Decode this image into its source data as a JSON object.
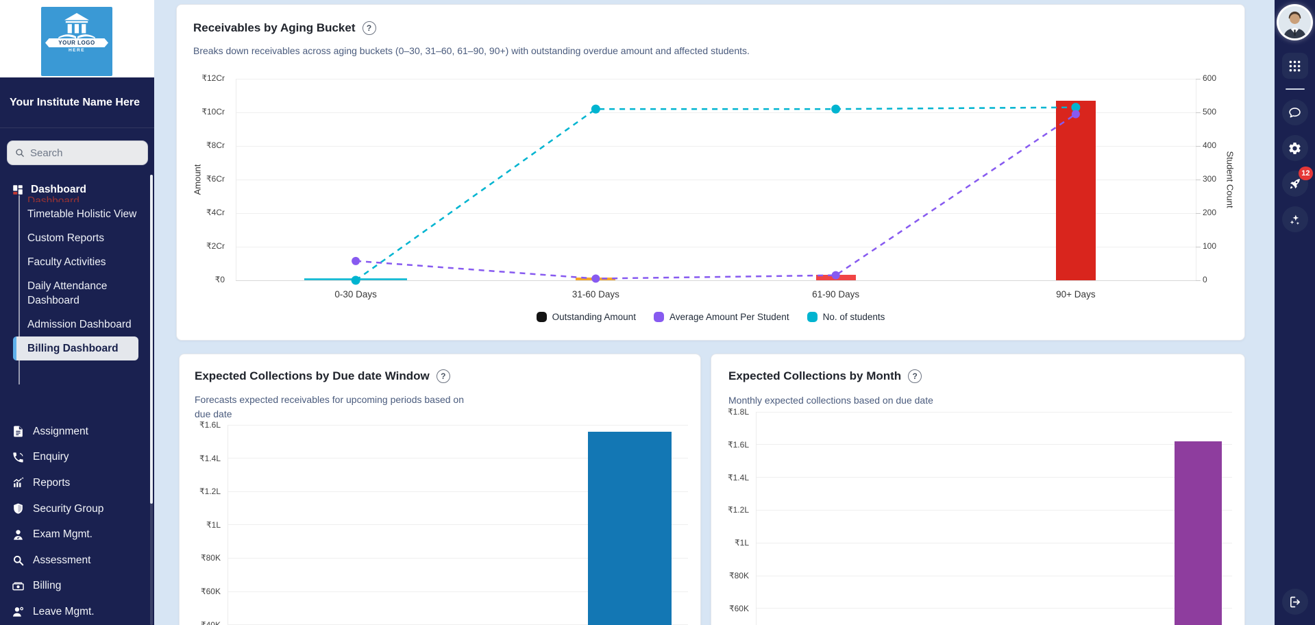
{
  "colors": {
    "sidebar_navy": "#1a2150",
    "main_background": "#d7e5f4",
    "active_item_accent": "#5fb0ea",
    "badge_red": "#e53737",
    "legend_black": "#141414",
    "line_purple": "#875af0",
    "line_cyan": "#00b4d0",
    "bar_red": "#d9251d",
    "bar_red_light": "#f04545",
    "bar_orange": "#f6a728",
    "bar_blue": "#1377b4",
    "bar_violet": "#8e3d9e"
  },
  "icons": {
    "help_glyph": "?"
  },
  "sidebar": {
    "logo": {
      "line1": "YOUR LOGO",
      "line2": "HERE"
    },
    "institute_name": "Your Institute Name Here",
    "search_placeholder": "Search",
    "section_label": "Dashboard",
    "submenu": [
      {
        "label": "Dashboard",
        "clipped": true
      },
      {
        "label": "Timetable Holistic View"
      },
      {
        "label": "Custom Reports"
      },
      {
        "label": "Faculty Activities"
      },
      {
        "label": "Daily Attendance Dashboard"
      },
      {
        "label": "Admission Dashboard"
      },
      {
        "label": "Billing Dashboard",
        "active": true
      }
    ],
    "menu": [
      {
        "label": "Assignment",
        "icon": "assignment-icon"
      },
      {
        "label": "Enquiry",
        "icon": "phone-icon"
      },
      {
        "label": "Reports",
        "icon": "reports-icon"
      },
      {
        "label": "Security Group",
        "icon": "shield-icon"
      },
      {
        "label": "Exam Mgmt.",
        "icon": "exam-icon"
      },
      {
        "label": "Assessment",
        "icon": "magnifier-icon"
      },
      {
        "label": "Billing",
        "icon": "billing-icon"
      },
      {
        "label": "Leave Mgmt.",
        "icon": "leave-icon"
      }
    ]
  },
  "right_rail": {
    "notification_badge": "12",
    "icons": [
      "avatar",
      "apps-grid-icon",
      "chat-icon",
      "gear-icon",
      "rocket-icon",
      "sparkles-icon",
      "logout-icon"
    ]
  },
  "chart_data": [
    {
      "id": "receivables_by_aging_bucket",
      "type": "combo-bar-line",
      "title": "Receivables by Aging Bucket",
      "description": "Breaks down receivables across aging buckets (0–30, 31–60, 61–90, 90+) with outstanding overdue amount and affected students.",
      "categories": [
        "0-30 Days",
        "31-60 Days",
        "61-90 Days",
        "90+ Days"
      ],
      "left_axis": {
        "label": "Amount",
        "ticks": [
          "₹0",
          "₹2Cr",
          "₹4Cr",
          "₹6Cr",
          "₹8Cr",
          "₹10Cr",
          "₹12Cr"
        ],
        "max_cr": 12
      },
      "right_axis": {
        "label": "Student Count",
        "ticks": [
          "0",
          "100",
          "200",
          "300",
          "400",
          "500",
          "600"
        ],
        "max": 600
      },
      "series": [
        {
          "name": "Outstanding Amount",
          "type": "bar",
          "axis": "left",
          "values_cr": [
            0,
            0.18,
            0.33,
            10.7
          ],
          "bar_colors": [
            "#d9251d",
            "#f6a728",
            "#f04545",
            "#d9251d"
          ]
        },
        {
          "name": "Average Amount Per Student",
          "type": "line",
          "axis": "left",
          "values_cr": [
            1.15,
            0.1,
            0.3,
            9.9
          ],
          "color": "#875af0"
        },
        {
          "name": "No. of students",
          "type": "line",
          "axis": "right",
          "values": [
            0,
            510,
            510,
            515
          ],
          "color": "#00b4d0"
        }
      ],
      "legend": [
        {
          "label": "Outstanding Amount",
          "color": "#141414"
        },
        {
          "label": "Average Amount Per Student",
          "color": "#875af0"
        },
        {
          "label": "No. of students",
          "color": "#00b4d0"
        }
      ],
      "grid": true,
      "legend_position": "bottom-center"
    },
    {
      "id": "expected_collections_by_due_date_window",
      "type": "bar",
      "title": "Expected Collections by Due date Window",
      "description": "Forecasts expected receivables for upcoming periods based on due date",
      "y_ticks": [
        "₹1.6L",
        "₹1.4L",
        "₹1.2L",
        "₹1L",
        "₹80K",
        "₹60K",
        "₹40K"
      ],
      "y_top_value_lakh": 1.6,
      "y_step_lakh": 0.2,
      "bars": [
        {
          "value_lakh": 1.56,
          "color": "#1377b4"
        }
      ],
      "grid": true
    },
    {
      "id": "expected_collections_by_month",
      "type": "bar",
      "title": "Expected Collections by Month",
      "description": "Monthly expected collections based on due date",
      "y_ticks": [
        "₹1.8L",
        "₹1.6L",
        "₹1.4L",
        "₹1.2L",
        "₹1L",
        "₹80K",
        "₹60K"
      ],
      "y_top_value_lakh": 1.8,
      "y_step_lakh": 0.2,
      "bars": [
        {
          "value_lakh": 1.62,
          "color": "#8e3d9e"
        }
      ],
      "grid": true
    }
  ]
}
